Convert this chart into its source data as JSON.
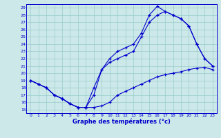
{
  "xlabel": "Graphe des températures (°c)",
  "xlim": [
    -0.5,
    23.5
  ],
  "ylim": [
    14.5,
    29.5
  ],
  "yticks": [
    15,
    16,
    17,
    18,
    19,
    20,
    21,
    22,
    23,
    24,
    25,
    26,
    27,
    28,
    29
  ],
  "xticks": [
    0,
    1,
    2,
    3,
    4,
    5,
    6,
    7,
    8,
    9,
    10,
    11,
    12,
    13,
    14,
    15,
    16,
    17,
    18,
    19,
    20,
    21,
    22,
    23
  ],
  "bg_color": "#cce8e8",
  "grid_color": "#99cccc",
  "line_color": "#0000cc",
  "line1_x": [
    0,
    1,
    2,
    3,
    4,
    5,
    6,
    7,
    8,
    9,
    10,
    11,
    12,
    13,
    14,
    15,
    16,
    17,
    18,
    19,
    20,
    21,
    22,
    23
  ],
  "line1_y": [
    19.0,
    18.5,
    18.0,
    17.0,
    16.5,
    15.8,
    15.3,
    15.3,
    15.3,
    15.5,
    16.0,
    17.0,
    17.5,
    18.0,
    18.5,
    19.0,
    19.5,
    19.8,
    20.0,
    20.2,
    20.5,
    20.7,
    20.8,
    20.5
  ],
  "line2_x": [
    0,
    1,
    2,
    3,
    4,
    5,
    6,
    7,
    8,
    9,
    10,
    11,
    12,
    13,
    14,
    15,
    16,
    17,
    18,
    19,
    20,
    21,
    22,
    23
  ],
  "line2_y": [
    19.0,
    18.5,
    18.0,
    17.0,
    16.5,
    15.8,
    15.3,
    15.3,
    17.0,
    20.5,
    21.5,
    22.0,
    22.5,
    23.0,
    25.0,
    27.0,
    28.0,
    28.5,
    28.0,
    27.5,
    26.5,
    24.0,
    22.0,
    21.0
  ],
  "line3_x": [
    0,
    1,
    2,
    3,
    4,
    5,
    6,
    7,
    8,
    9,
    10,
    11,
    12,
    13,
    14,
    15,
    16,
    17,
    18,
    19,
    20,
    21,
    22,
    23
  ],
  "line3_y": [
    19.0,
    18.5,
    18.0,
    17.0,
    16.5,
    15.8,
    15.3,
    15.3,
    18.0,
    20.5,
    22.0,
    23.0,
    23.5,
    24.0,
    25.5,
    28.0,
    29.2,
    28.5,
    28.0,
    27.5,
    26.5,
    24.0,
    22.0,
    21.0
  ]
}
